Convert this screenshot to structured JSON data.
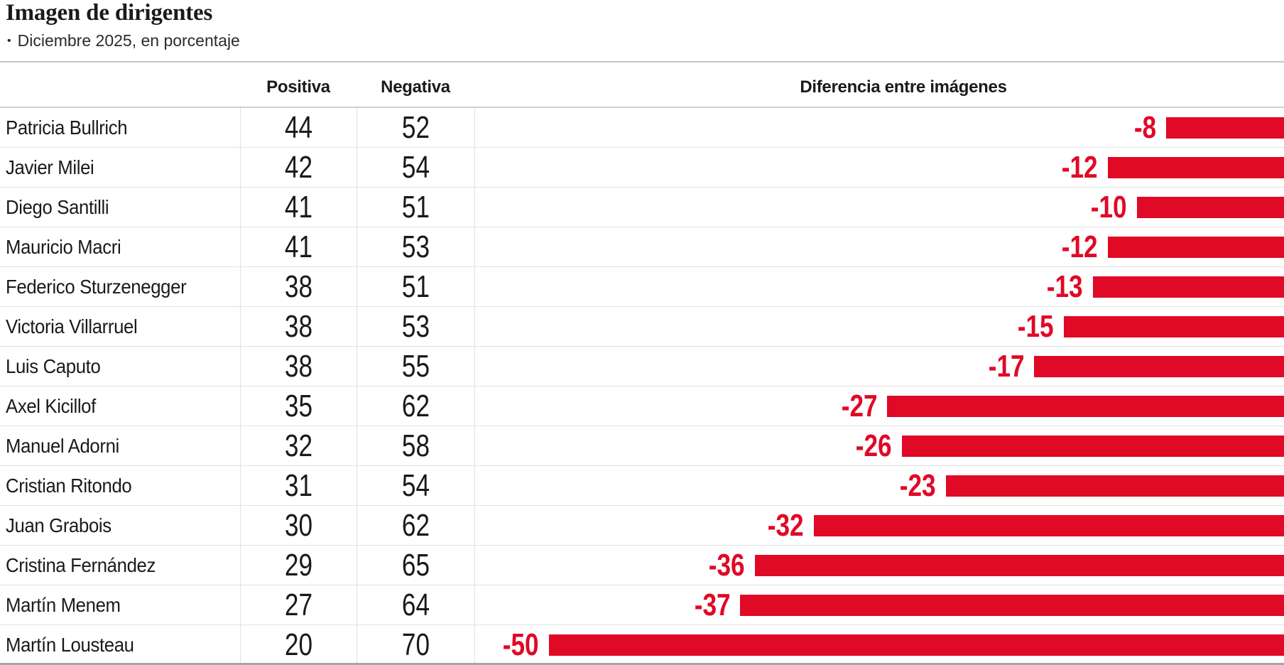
{
  "header": {
    "title": "Imagen de dirigentes",
    "subtitle_bullet": "•",
    "subtitle": "Diciembre 2025, en porcentaje"
  },
  "columns": {
    "positive": "Positiva",
    "negative": "Negativa",
    "difference": "Diferencia entre imágenes"
  },
  "colors": {
    "bar": "#e00926",
    "diff_label": "#e00926",
    "text": "#1a1a1a",
    "grid": "#e2e2e2"
  },
  "chart_data": {
    "type": "bar",
    "orientation": "horizontal",
    "title": "Imagen de dirigentes",
    "subtitle": "Diciembre 2025, en porcentaje",
    "categories": [
      "Patricia Bullrich",
      "Javier Milei",
      "Diego Santilli",
      "Mauricio Macri",
      "Federico Sturzenegger",
      "Victoria Villarruel",
      "Luis Caputo",
      "Axel Kicillof",
      "Manuel Adorni",
      "Cristian Ritondo",
      "Juan Grabois",
      "Cristina Fernández",
      "Martín Menem",
      "Martín Lousteau"
    ],
    "series": [
      {
        "name": "Positiva",
        "values": [
          44,
          42,
          41,
          41,
          38,
          38,
          38,
          35,
          32,
          31,
          30,
          29,
          27,
          20
        ]
      },
      {
        "name": "Negativa",
        "values": [
          52,
          54,
          51,
          53,
          51,
          53,
          55,
          62,
          58,
          54,
          62,
          65,
          64,
          70
        ]
      },
      {
        "name": "Diferencia entre imágenes",
        "values": [
          -8,
          -12,
          -10,
          -12,
          -13,
          -15,
          -17,
          -27,
          -26,
          -23,
          -32,
          -36,
          -37,
          -50
        ]
      }
    ],
    "bar_axis": {
      "anchor": "right",
      "max_abs_value": 50
    },
    "legend": "none",
    "grid": "row-separators"
  }
}
